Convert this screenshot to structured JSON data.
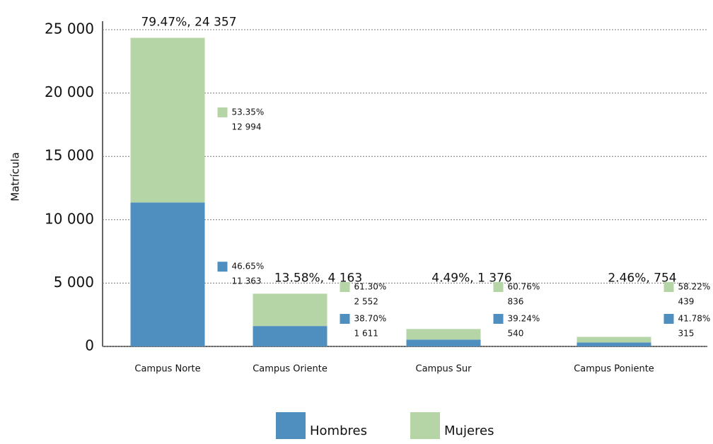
{
  "chart_data": {
    "type": "stacked_bar",
    "y_label": "Matrícula",
    "categories": [
      "Campus Norte",
      "Campus Oriente",
      "Campus Sur",
      "Campus Poniente"
    ],
    "series": [
      {
        "name": "Hombres",
        "color": "#4f8fbf",
        "values": [
          11363,
          1611,
          540,
          315
        ],
        "value_labels": [
          "11 363",
          "1 611",
          "540",
          "315"
        ],
        "percent_labels": [
          "46.65%",
          "38.70%",
          "39.24%",
          "41.78%"
        ]
      },
      {
        "name": "Mujeres",
        "color": "#b5d5a7",
        "values": [
          12994,
          2552,
          836,
          439
        ],
        "value_labels": [
          "12 994",
          "2 552",
          "836",
          "439"
        ],
        "percent_labels": [
          "53.35%",
          "61.30%",
          "60.76%",
          "58.22%"
        ]
      }
    ],
    "total_labels": [
      "79.47%, 24 357",
      "13.58%, 4 163",
      "4.49%, 1 376",
      "2.46%, 754"
    ],
    "ylim": [
      0,
      25000
    ],
    "yticks": [
      0,
      {
        "value": 5000,
        "label": "5 000"
      },
      {
        "value": 10000,
        "label": "10 000"
      },
      {
        "value": 15000,
        "label": "15 000"
      },
      {
        "value": 20000,
        "label": "20 000"
      },
      {
        "value": 25000,
        "label": "25 000"
      }
    ],
    "grid": true
  }
}
